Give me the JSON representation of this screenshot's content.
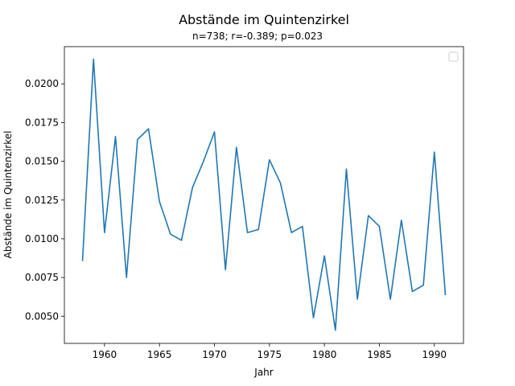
{
  "chart_data": {
    "type": "line",
    "title": "Abstände im Quintenzirkel",
    "subtitle": "n=738; r=-0.389; p=0.023",
    "xlabel": "Jahr",
    "ylabel": "Abstände im Quintenzirkel",
    "xlim": [
      1956.35,
      1992.65
    ],
    "ylim": [
      0.00325,
      0.0224
    ],
    "xticks": [
      1960,
      1965,
      1970,
      1975,
      1980,
      1985,
      1990
    ],
    "xtick_labels": [
      "1960",
      "1965",
      "1970",
      "1975",
      "1980",
      "1985",
      "1990"
    ],
    "yticks": [
      0.005,
      0.0075,
      0.01,
      0.0125,
      0.015,
      0.0175,
      0.02
    ],
    "ytick_labels": [
      "0.0050",
      "0.0075",
      "0.0100",
      "0.0125",
      "0.0150",
      "0.0175",
      "0.0200"
    ],
    "grid": false,
    "legend": {
      "placement": "top-right",
      "entries": []
    },
    "series": [
      {
        "color": "#1f77b4",
        "x": [
          1958,
          1959,
          1960,
          1961,
          1962,
          1963,
          1964,
          1965,
          1966,
          1967,
          1968,
          1969,
          1970,
          1971,
          1972,
          1973,
          1974,
          1975,
          1976,
          1977,
          1978,
          1979,
          1980,
          1981,
          1982,
          1983,
          1984,
          1985,
          1986,
          1987,
          1988,
          1989,
          1990,
          1991
        ],
        "y": [
          0.0086,
          0.0216,
          0.0104,
          0.0166,
          0.0075,
          0.0164,
          0.0171,
          0.0124,
          0.0103,
          0.0099,
          0.0133,
          0.015,
          0.0169,
          0.008,
          0.0159,
          0.0104,
          0.0106,
          0.0151,
          0.0136,
          0.0104,
          0.0108,
          0.0049,
          0.0089,
          0.0041,
          0.0145,
          0.0061,
          0.0115,
          0.0108,
          0.0061,
          0.0112,
          0.0066,
          0.007,
          0.0156,
          0.0064
        ]
      }
    ]
  }
}
